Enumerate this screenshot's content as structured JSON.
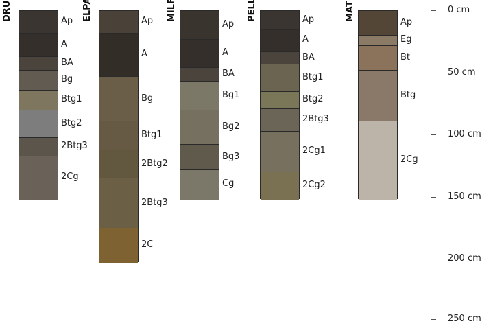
{
  "profiles": [
    {
      "name": "DRUMMER",
      "horizons": [
        {
          "label": "Ap",
          "top": 0,
          "bottom": 18,
          "color": "#3a3530"
        },
        {
          "label": "A",
          "top": 18,
          "bottom": 37,
          "color": "#342f2a"
        },
        {
          "label": "BA",
          "top": 37,
          "bottom": 48,
          "color": "#4a443c"
        },
        {
          "label": "Bg",
          "top": 48,
          "bottom": 64,
          "color": "#625b52"
        },
        {
          "label": "Btg1",
          "top": 64,
          "bottom": 80,
          "color": "#7e765f"
        },
        {
          "label": "Btg2",
          "top": 80,
          "bottom": 102,
          "color": "#7d7d7d"
        },
        {
          "label": "2Btg3",
          "top": 102,
          "bottom": 117,
          "color": "#5c554c"
        },
        {
          "label": "2Cg",
          "top": 117,
          "bottom": 152,
          "color": "#6a6258"
        }
      ]
    },
    {
      "name": "ELPASO",
      "horizons": [
        {
          "label": "Ap",
          "top": 0,
          "bottom": 18,
          "color": "#4a4238"
        },
        {
          "label": "A",
          "top": 18,
          "bottom": 53,
          "color": "#332d27"
        },
        {
          "label": "Bg",
          "top": 53,
          "bottom": 89,
          "color": "#6a5e48"
        },
        {
          "label": "Btg1",
          "top": 89,
          "bottom": 112,
          "color": "#675a44"
        },
        {
          "label": "2Btg2",
          "top": 112,
          "bottom": 135,
          "color": "#62573f"
        },
        {
          "label": "2Btg3",
          "top": 135,
          "bottom": 175,
          "color": "#6b5f46"
        },
        {
          "label": "2C",
          "top": 175,
          "bottom": 203,
          "color": "#7e6232"
        }
      ]
    },
    {
      "name": "MILFORD",
      "horizons": [
        {
          "label": "Ap",
          "top": 0,
          "bottom": 23,
          "color": "#3a342f"
        },
        {
          "label": "A",
          "top": 23,
          "bottom": 46,
          "color": "#342f2a"
        },
        {
          "label": "BA",
          "top": 46,
          "bottom": 57,
          "color": "#4a443c"
        },
        {
          "label": "Bg1",
          "top": 57,
          "bottom": 80,
          "color": "#7b7868"
        },
        {
          "label": "Bg2",
          "top": 80,
          "bottom": 108,
          "color": "#767060"
        },
        {
          "label": "Bg3",
          "top": 108,
          "bottom": 128,
          "color": "#605a4d"
        },
        {
          "label": "Cg",
          "top": 128,
          "bottom": 152,
          "color": "#7b7869"
        }
      ]
    },
    {
      "name": "PELLA",
      "horizons": [
        {
          "label": "Ap",
          "top": 0,
          "bottom": 15,
          "color": "#3a3530"
        },
        {
          "label": "A",
          "top": 15,
          "bottom": 33,
          "color": "#342f2a"
        },
        {
          "label": "BA",
          "top": 33,
          "bottom": 43,
          "color": "#4a443c"
        },
        {
          "label": "Btg1",
          "top": 43,
          "bottom": 65,
          "color": "#6a6450"
        },
        {
          "label": "Btg2",
          "top": 65,
          "bottom": 79,
          "color": "#7a7658"
        },
        {
          "label": "2Btg3",
          "top": 79,
          "bottom": 97,
          "color": "#6a6557"
        },
        {
          "label": "2Cg1",
          "top": 97,
          "bottom": 130,
          "color": "#77705f"
        },
        {
          "label": "2Cg2",
          "top": 130,
          "bottom": 152,
          "color": "#7a7152"
        }
      ]
    },
    {
      "name": "MATHERTON",
      "horizons": [
        {
          "label": "Ap",
          "top": 0,
          "bottom": 20,
          "color": "#544636"
        },
        {
          "label": "Eg",
          "top": 20,
          "bottom": 28,
          "color": "#8a7a66"
        },
        {
          "label": "Bt",
          "top": 28,
          "bottom": 48,
          "color": "#8a735a"
        },
        {
          "label": "Btg",
          "top": 48,
          "bottom": 89,
          "color": "#8a7868"
        },
        {
          "label": "2Cg",
          "top": 89,
          "bottom": 152,
          "color": "#bcb4a8"
        }
      ]
    }
  ],
  "scale": {
    "ticks": [
      {
        "depth": 0,
        "label": "0 cm"
      },
      {
        "depth": 50,
        "label": "50 cm"
      },
      {
        "depth": 100,
        "label": "100 cm"
      },
      {
        "depth": 150,
        "label": "150 cm"
      },
      {
        "depth": 200,
        "label": "200 cm"
      },
      {
        "depth": 250,
        "label": "250 cm"
      }
    ]
  }
}
